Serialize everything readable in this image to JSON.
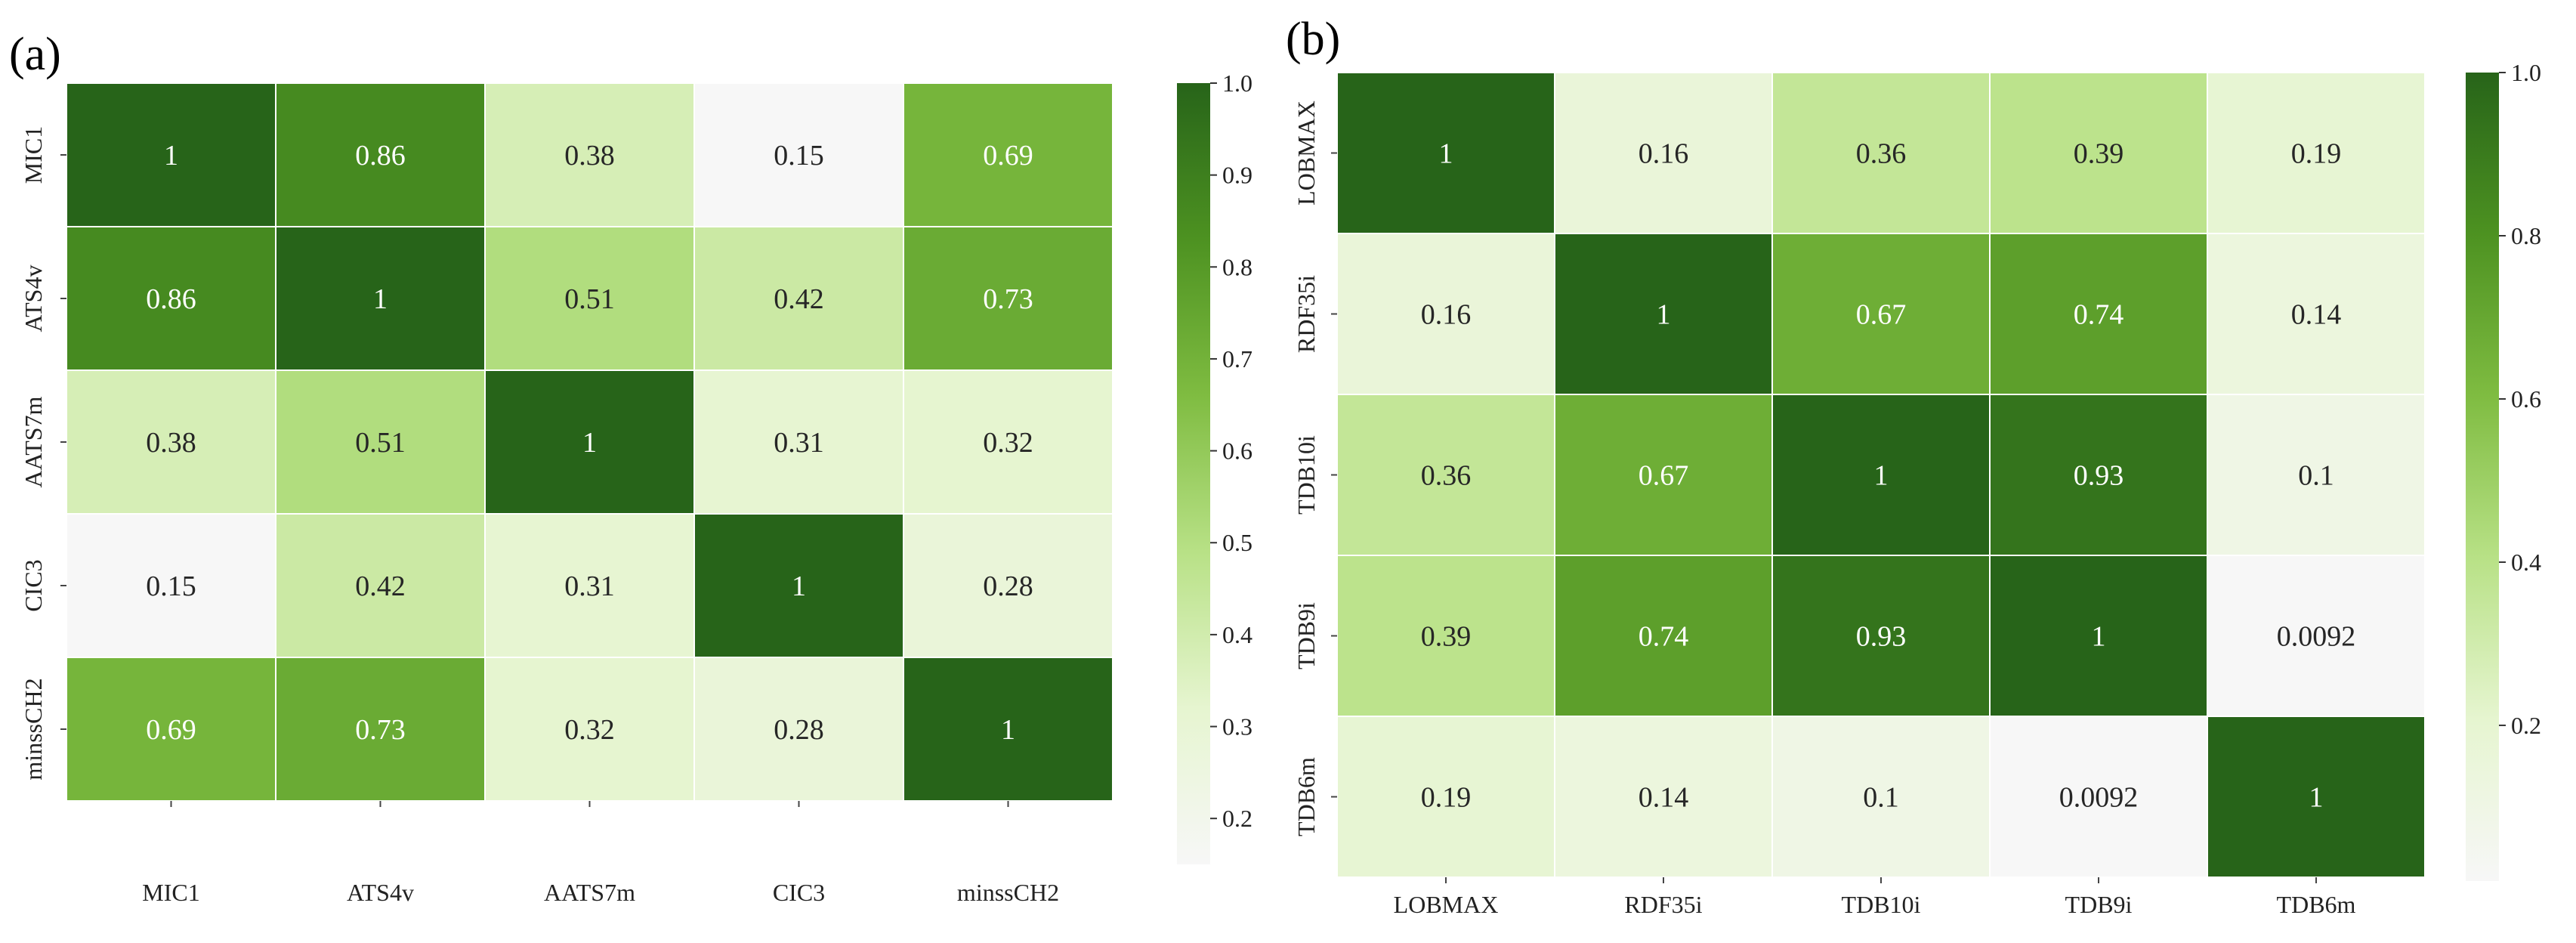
{
  "chart_data": [
    {
      "type": "heatmap",
      "panel_label": "(a)",
      "x_labels": [
        "MIC1",
        "ATS4v",
        "AATS7m",
        "CIC3",
        "minssCH2"
      ],
      "y_labels": [
        "MIC1",
        "ATS4v",
        "AATS7m",
        "CIC3",
        "minssCH2"
      ],
      "matrix": [
        [
          1,
          0.86,
          0.38,
          0.15,
          0.69
        ],
        [
          0.86,
          1,
          0.51,
          0.42,
          0.73
        ],
        [
          0.38,
          0.51,
          1,
          0.31,
          0.32
        ],
        [
          0.15,
          0.42,
          0.31,
          1,
          0.28
        ],
        [
          0.69,
          0.73,
          0.32,
          0.28,
          1
        ]
      ],
      "cell_labels": [
        [
          "1",
          "0.86",
          "0.38",
          "0.15",
          "0.69"
        ],
        [
          "0.86",
          "1",
          "0.51",
          "0.42",
          "0.73"
        ],
        [
          "0.38",
          "0.51",
          "1",
          "0.31",
          "0.32"
        ],
        [
          "0.15",
          "0.42",
          "0.31",
          "1",
          "0.28"
        ],
        [
          "0.69",
          "0.73",
          "0.32",
          "0.28",
          "1"
        ]
      ],
      "colorbar": {
        "vmin": 0.15,
        "vmax": 1.0,
        "ticks": [
          0.2,
          0.3,
          0.4,
          0.5,
          0.6,
          0.7,
          0.8,
          0.9,
          1.0
        ],
        "tick_labels": [
          "0.2",
          "0.3",
          "0.4",
          "0.5",
          "0.6",
          "0.7",
          "0.8",
          "0.9",
          "1.0"
        ]
      },
      "colormap": [
        "#f7f7f7",
        "#e6f5d0",
        "#b8e186",
        "#7fbc41",
        "#4d9221",
        "#276419"
      ]
    },
    {
      "type": "heatmap",
      "panel_label": "(b)",
      "x_labels": [
        "LOBMAX",
        "RDF35i",
        "TDB10i",
        "TDB9i",
        "TDB6m"
      ],
      "y_labels": [
        "LOBMAX",
        "RDF35i",
        "TDB10i",
        "TDB9i",
        "TDB6m"
      ],
      "matrix": [
        [
          1,
          0.16,
          0.36,
          0.39,
          0.19
        ],
        [
          0.16,
          1,
          0.67,
          0.74,
          0.14
        ],
        [
          0.36,
          0.67,
          1,
          0.93,
          0.1
        ],
        [
          0.39,
          0.74,
          0.93,
          1,
          0.0092
        ],
        [
          0.19,
          0.14,
          0.1,
          0.0092,
          1
        ]
      ],
      "cell_labels": [
        [
          "1",
          "0.16",
          "0.36",
          "0.39",
          "0.19"
        ],
        [
          "0.16",
          "1",
          "0.67",
          "0.74",
          "0.14"
        ],
        [
          "0.36",
          "0.67",
          "1",
          "0.93",
          "0.1"
        ],
        [
          "0.39",
          "0.74",
          "0.93",
          "1",
          "0.0092"
        ],
        [
          "0.19",
          "0.14",
          "0.1",
          "0.0092",
          "1"
        ]
      ],
      "colorbar": {
        "vmin": 0.0092,
        "vmax": 1.0,
        "ticks": [
          0.2,
          0.4,
          0.6,
          0.8,
          1.0
        ],
        "tick_labels": [
          "0.2",
          "0.4",
          "0.6",
          "0.8",
          "1.0"
        ]
      },
      "colormap": [
        "#f7f7f7",
        "#e6f5d0",
        "#b8e186",
        "#7fbc41",
        "#4d9221",
        "#276419"
      ]
    }
  ]
}
